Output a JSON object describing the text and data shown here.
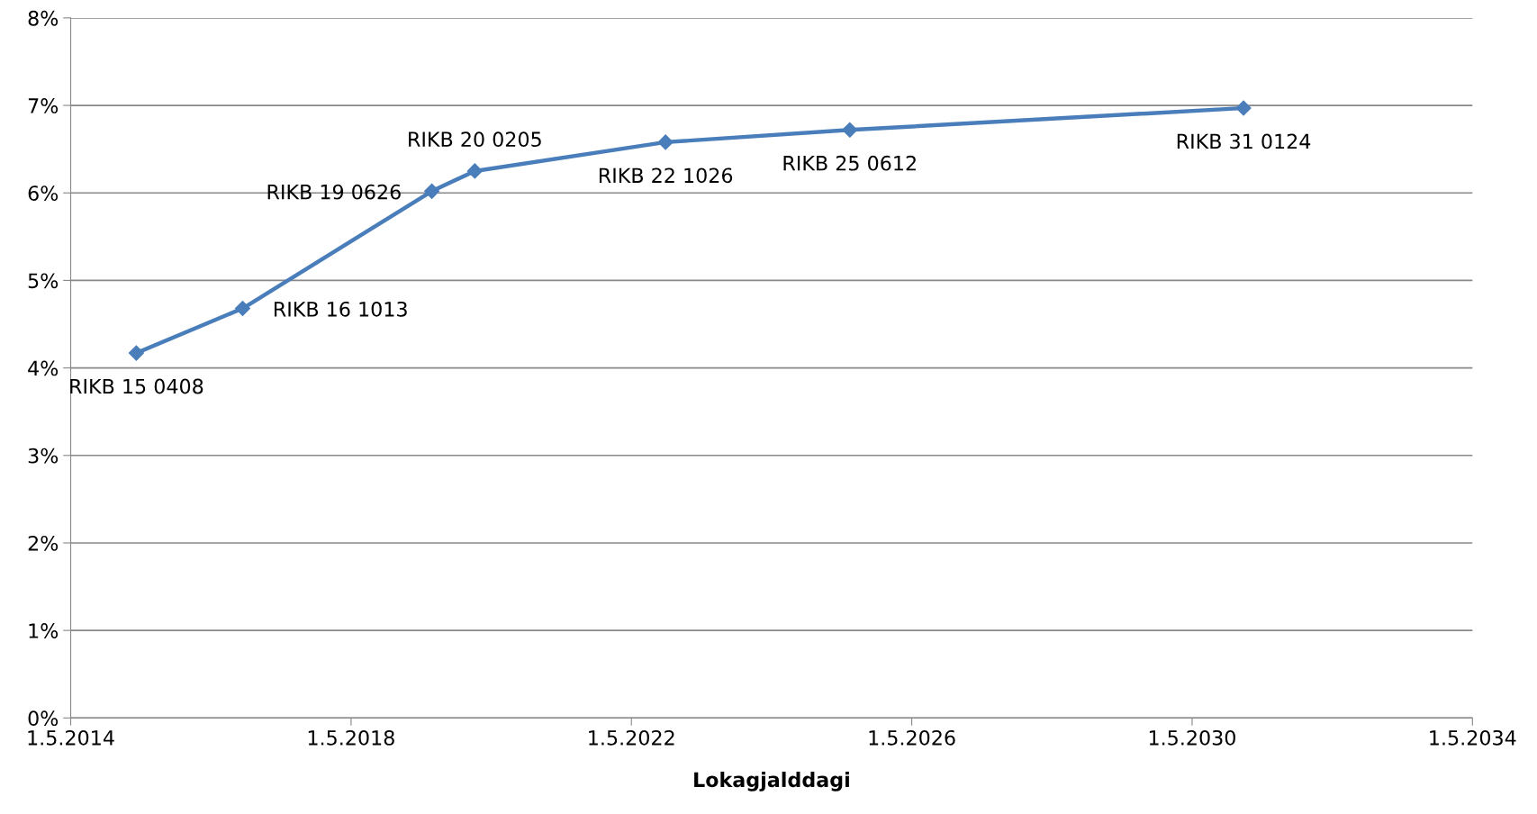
{
  "chart_data": {
    "type": "line",
    "xlabel": "Lokagjalddagi",
    "x": [
      "2015-04-08",
      "2016-10-13",
      "2019-06-26",
      "2020-02-05",
      "2022-10-26",
      "2025-06-12",
      "2031-01-24"
    ],
    "series": [
      {
        "color": "#4a7ebb",
        "values": [
          4.17,
          4.68,
          6.02,
          6.25,
          6.58,
          6.72,
          6.97
        ]
      }
    ],
    "annotations": [
      {
        "text": "RIKB 15 0408",
        "x": "2015-04-08",
        "y": 4.17
      },
      {
        "text": "RIKB 16 1013",
        "x": "2016-10-13",
        "y": 4.68
      },
      {
        "text": "RIKB 19 0626",
        "x": "2019-06-26",
        "y": 6.02
      },
      {
        "text": "RIKB 20 0205",
        "x": "2020-02-05",
        "y": 6.25
      },
      {
        "text": "RIKB 22 1026",
        "x": "2022-10-26",
        "y": 6.58
      },
      {
        "text": "RIKB 25 0612",
        "x": "2025-06-12",
        "y": 6.72
      },
      {
        "text": "RIKB 31 0124",
        "x": "2031-01-24",
        "y": 6.97
      }
    ],
    "xlim": [
      "2014-05-01",
      "2034-05-01"
    ],
    "xticks": [
      {
        "value": "2014-05-01",
        "label": "1.5.2014"
      },
      {
        "value": "2018-05-01",
        "label": "1.5.2018"
      },
      {
        "value": "2022-05-01",
        "label": "1.5.2022"
      },
      {
        "value": "2026-05-01",
        "label": "1.5.2026"
      },
      {
        "value": "2030-05-01",
        "label": "1.5.2030"
      },
      {
        "value": "2034-05-01",
        "label": "1.5.2034"
      }
    ],
    "ylim": [
      0,
      8
    ],
    "yticks": [
      {
        "value": 0,
        "label": "0%"
      },
      {
        "value": 1,
        "label": "1%"
      },
      {
        "value": 2,
        "label": "2%"
      },
      {
        "value": 3,
        "label": "3%"
      },
      {
        "value": 4,
        "label": "4%"
      },
      {
        "value": 5,
        "label": "5%"
      },
      {
        "value": 6,
        "label": "6%"
      },
      {
        "value": 7,
        "label": "7%"
      },
      {
        "value": 8,
        "label": "8%"
      }
    ],
    "grid": "y",
    "marker": "diamond",
    "line_style": "solid"
  }
}
